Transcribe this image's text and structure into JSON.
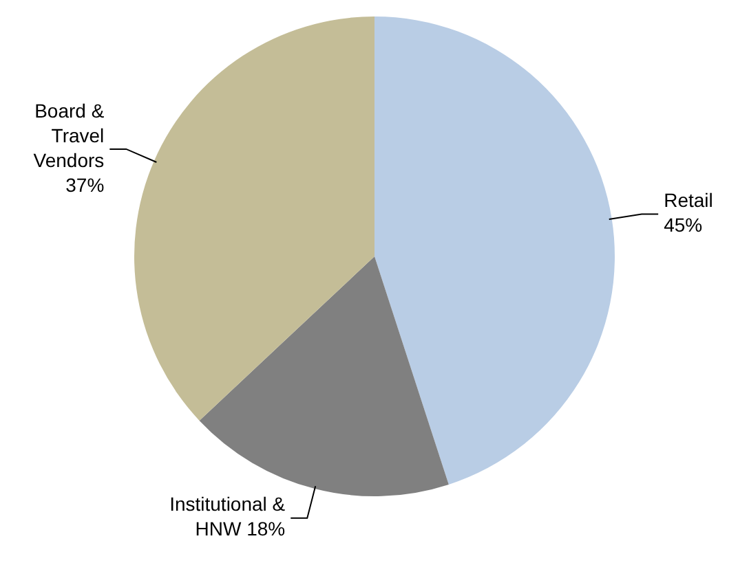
{
  "chart_data": {
    "type": "pie",
    "categories": [
      "Retail",
      "Institutional & HNW",
      "Board & Travel Vendors"
    ],
    "values": [
      45,
      18,
      37
    ],
    "colors": [
      "#b9cde5",
      "#808080",
      "#c4bd97"
    ],
    "value_labels": [
      "45%",
      "18%",
      "37%"
    ],
    "legend": false
  }
}
